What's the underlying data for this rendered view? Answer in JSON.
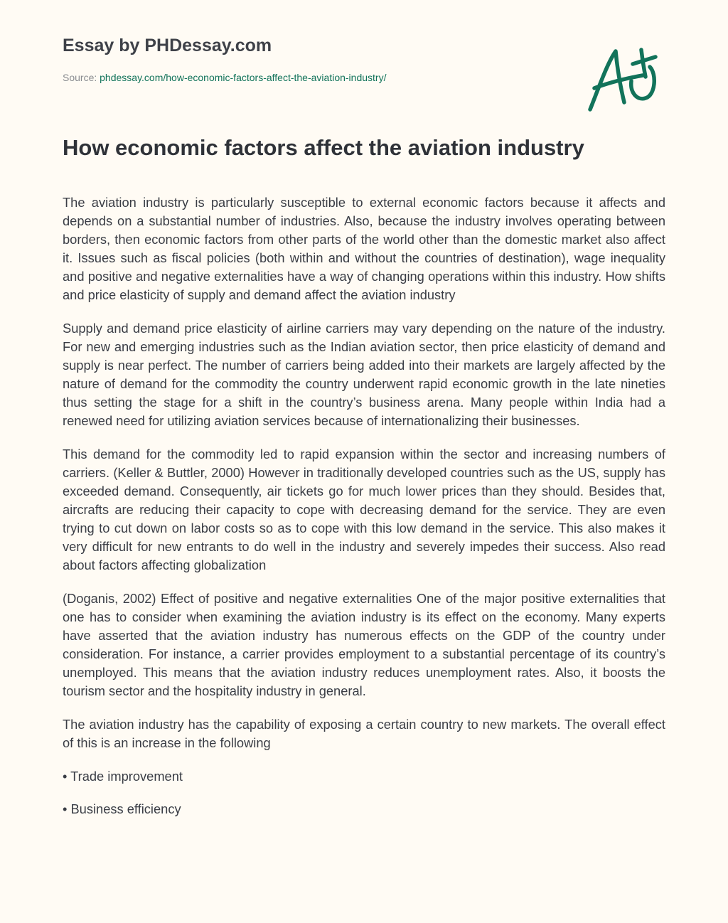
{
  "header": {
    "brand": "Essay by PHDessay.com",
    "source_label": "Source:",
    "source_link": "phdessay.com/how-economic-factors-affect-the-aviation-industry/",
    "logo_text": "A+",
    "accent_color": "#12735a"
  },
  "title": "How economic factors affect the aviation industry",
  "paragraphs": [
    "The aviation industry is particularly susceptible to external economic factors because it affects and depends on a substantial number of industries. Also, because the industry involves operating between borders, then economic factors from other parts of the world other than the domestic market also affect it. Issues such as fiscal policies (both within and without the countries of destination), wage inequality and positive and negative externalities have a way of changing operations within this industry. How shifts and price elasticity of supply and demand affect the aviation industry",
    "Supply and demand price elasticity of airline carriers may vary depending on the nature of the industry. For new and emerging industries such as the Indian aviation sector, then price elasticity of demand and supply is near perfect. The number of carriers being added into their markets are largely affected by the nature of demand for the commodity the country underwent rapid economic growth in the late nineties thus setting the stage for a shift in the country’s business arena. Many people within India had a renewed need for utilizing aviation services because of internationalizing their businesses.",
    "This demand for the commodity led to rapid expansion within the sector and increasing numbers of carriers. (Keller & Buttler, 2000) However in traditionally developed countries such as the US, supply has exceeded demand. Consequently, air tickets go for much lower prices than they should. Besides that, aircrafts are reducing their capacity to cope with decreasing demand for the service. They are even trying to cut down on labor costs so as to cope with this low demand in the service. This also makes it very difficult for new entrants to do well in the industry and severely impedes their success. Also read about factors affecting globalization",
    "(Doganis, 2002) Effect of positive and negative externalities One of the major positive externalities that one has to consider when examining the aviation industry is its effect on the economy. Many experts have asserted that the aviation industry has numerous effects on the GDP of the country under consideration. For instance, a carrier provides employment to a substantial percentage of its country’s unemployed. This means that the aviation industry reduces unemployment rates. Also, it boosts the tourism sector and the hospitality industry in general.",
    "The aviation industry has the capability of exposing a certain country to new markets. The overall effect of this is an increase in the following"
  ],
  "bullets": [
    "• Trade improvement",
    "• Business efficiency"
  ]
}
